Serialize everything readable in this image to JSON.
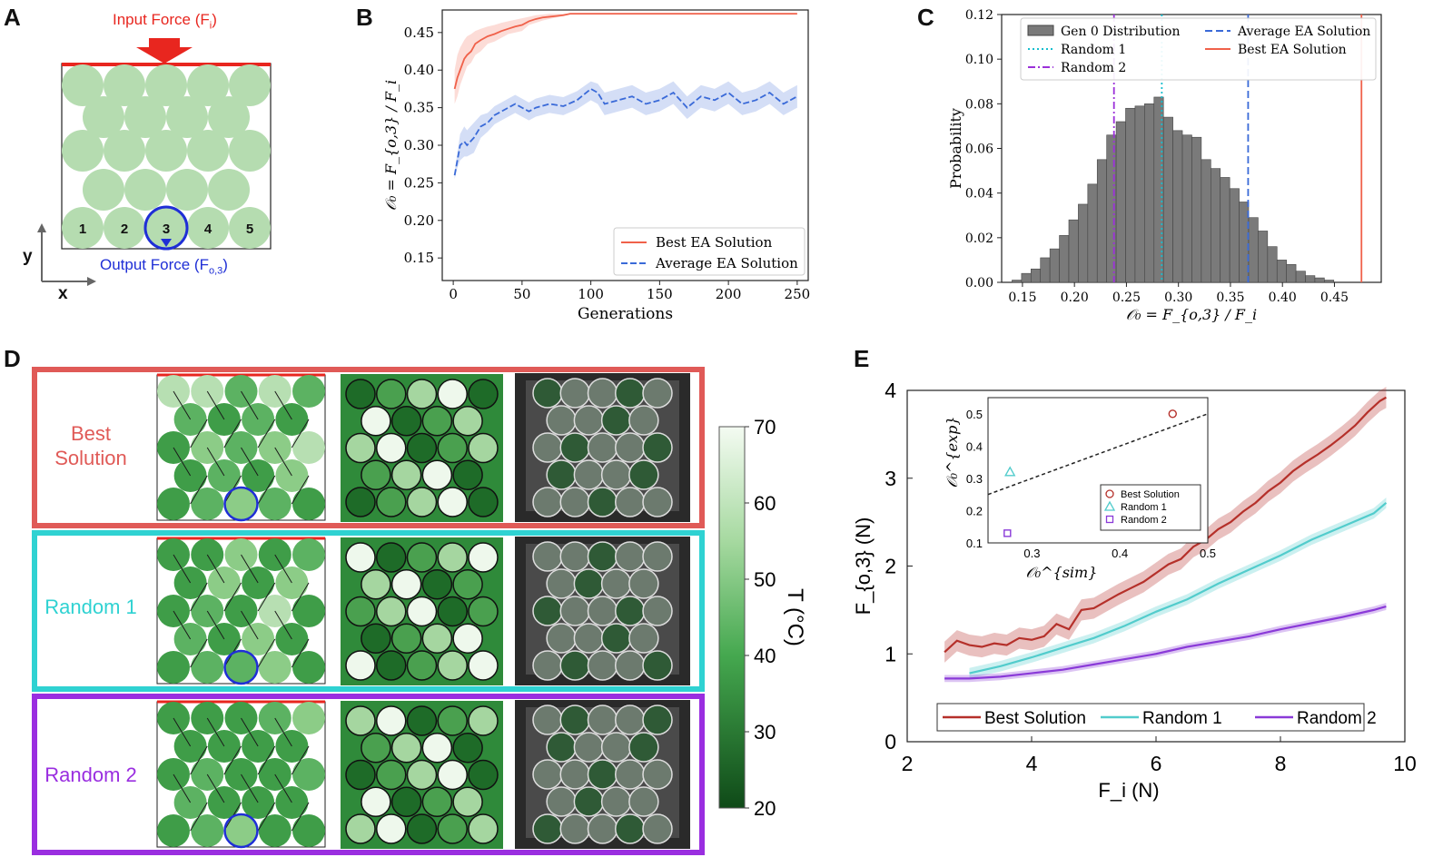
{
  "panels": {
    "a": {
      "letter": "A",
      "input_label_pre": "Input Force (F",
      "input_label_sub": "i",
      "input_label_post": ")",
      "output_label_pre": "Output Force (F",
      "output_label_sub": "o,3",
      "output_label_post": ")",
      "bottom_numbers": [
        "1",
        "2",
        "3",
        "4",
        "5"
      ],
      "axis_y": "y",
      "axis_x": "x",
      "colors": {
        "input": "#e8261f",
        "output": "#1f2fd6",
        "particle": "#b5dcb0"
      }
    },
    "b": {
      "letter": "B"
    },
    "c": {
      "letter": "C"
    },
    "d": {
      "letter": "D",
      "rows": [
        {
          "label": "Best\nSolution",
          "color": "#e05a57"
        },
        {
          "label": "Random 1",
          "color": "#2fd2d2"
        },
        {
          "label": "Random 2",
          "color": "#9a2ee0"
        }
      ],
      "colorbar": {
        "ticks": [
          "70",
          "60",
          "50",
          "40",
          "30",
          "20"
        ],
        "label": "T (°C)"
      }
    },
    "e": {
      "letter": "E"
    }
  },
  "chart_data": [
    {
      "id": "B",
      "type": "line",
      "xlabel": "Generations",
      "ylabel": "𝒪₀ = F_{o,3} / F_i",
      "xlim": [
        -8,
        258
      ],
      "ylim": [
        0.12,
        0.48
      ],
      "xticks": [
        "0",
        "50",
        "100",
        "150",
        "200",
        "250"
      ],
      "yticks": [
        "0.15",
        "0.20",
        "0.25",
        "0.30",
        "0.35",
        "0.40",
        "0.45"
      ],
      "legend": {
        "position": "bottom-right",
        "entries": [
          "Best EA Solution",
          "Average EA Solution"
        ]
      },
      "series": [
        {
          "name": "Best EA Solution",
          "color": "#f0614a",
          "style": "solid",
          "x": [
            1,
            3,
            5,
            8,
            10,
            13,
            16,
            20,
            25,
            30,
            35,
            40,
            45,
            50,
            55,
            60,
            65,
            70,
            75,
            80,
            85,
            100,
            150,
            200,
            250
          ],
          "y": [
            0.375,
            0.39,
            0.4,
            0.415,
            0.42,
            0.425,
            0.435,
            0.44,
            0.445,
            0.448,
            0.452,
            0.455,
            0.458,
            0.46,
            0.465,
            0.468,
            0.47,
            0.471,
            0.472,
            0.473,
            0.475,
            0.475,
            0.475,
            0.475,
            0.475
          ],
          "band_low": [
            0.355,
            0.365,
            0.38,
            0.395,
            0.405,
            0.41,
            0.42,
            0.425,
            0.435,
            0.438,
            0.443,
            0.448,
            0.45,
            0.452,
            0.46,
            0.463,
            0.466,
            0.468,
            0.47,
            0.472,
            0.475,
            0.475,
            0.475,
            0.475,
            0.475
          ],
          "band_high": [
            0.4,
            0.42,
            0.43,
            0.44,
            0.445,
            0.448,
            0.452,
            0.455,
            0.458,
            0.46,
            0.463,
            0.465,
            0.467,
            0.469,
            0.471,
            0.473,
            0.474,
            0.475,
            0.475,
            0.475,
            0.475,
            0.475,
            0.475,
            0.475,
            0.475
          ]
        },
        {
          "name": "Average EA Solution",
          "color": "#3a6ad8",
          "style": "dashed",
          "x": [
            1,
            3,
            5,
            8,
            10,
            15,
            20,
            25,
            30,
            35,
            40,
            45,
            50,
            55,
            60,
            70,
            80,
            90,
            100,
            105,
            110,
            120,
            130,
            140,
            150,
            160,
            170,
            180,
            190,
            200,
            210,
            220,
            230,
            240,
            250
          ],
          "y": [
            0.26,
            0.28,
            0.3,
            0.305,
            0.3,
            0.31,
            0.325,
            0.33,
            0.34,
            0.345,
            0.35,
            0.355,
            0.35,
            0.345,
            0.35,
            0.355,
            0.352,
            0.36,
            0.375,
            0.37,
            0.355,
            0.36,
            0.365,
            0.355,
            0.36,
            0.37,
            0.35,
            0.365,
            0.36,
            0.37,
            0.355,
            0.36,
            0.37,
            0.355,
            0.365
          ],
          "band_low": [
            0.255,
            0.27,
            0.28,
            0.285,
            0.285,
            0.29,
            0.31,
            0.318,
            0.328,
            0.333,
            0.338,
            0.343,
            0.338,
            0.333,
            0.338,
            0.343,
            0.34,
            0.348,
            0.36,
            0.355,
            0.34,
            0.345,
            0.35,
            0.34,
            0.345,
            0.355,
            0.335,
            0.35,
            0.345,
            0.355,
            0.34,
            0.345,
            0.355,
            0.34,
            0.35
          ],
          "band_high": [
            0.265,
            0.29,
            0.315,
            0.325,
            0.32,
            0.33,
            0.34,
            0.343,
            0.352,
            0.357,
            0.362,
            0.367,
            0.362,
            0.357,
            0.362,
            0.367,
            0.364,
            0.372,
            0.385,
            0.382,
            0.37,
            0.375,
            0.38,
            0.37,
            0.375,
            0.385,
            0.365,
            0.38,
            0.375,
            0.385,
            0.37,
            0.375,
            0.385,
            0.37,
            0.38
          ]
        }
      ]
    },
    {
      "id": "C",
      "type": "bar",
      "xlabel": "𝒪₀ = F_{o,3} / F_i",
      "ylabel": "Probability",
      "xlim": [
        0.13,
        0.495
      ],
      "ylim": [
        0,
        0.12
      ],
      "xticks": [
        "0.15",
        "0.20",
        "0.25",
        "0.30",
        "0.35",
        "0.40",
        "0.45"
      ],
      "yticks": [
        "0.00",
        "0.02",
        "0.04",
        "0.06",
        "0.08",
        "0.10",
        "0.12"
      ],
      "legend": {
        "position": "top",
        "entries": [
          "Gen 0 Distribution",
          "Random 1",
          "Random 2",
          "Average EA Solution",
          "Best EA Solution"
        ]
      },
      "bins_start": 0.14,
      "bin_width": 0.0091,
      "values": [
        0.001,
        0.004,
        0.006,
        0.011,
        0.015,
        0.021,
        0.028,
        0.035,
        0.044,
        0.055,
        0.066,
        0.072,
        0.078,
        0.079,
        0.08,
        0.083,
        0.074,
        0.068,
        0.066,
        0.065,
        0.055,
        0.051,
        0.047,
        0.042,
        0.036,
        0.029,
        0.023,
        0.016,
        0.01,
        0.008,
        0.005,
        0.003,
        0.002,
        0.001
      ],
      "vlines": [
        {
          "name": "Random 1",
          "x": 0.284,
          "color": "#17becf",
          "style": "dotted"
        },
        {
          "name": "Random 2",
          "x": 0.238,
          "color": "#9b30d9",
          "style": "dashdot"
        },
        {
          "name": "Average EA Solution",
          "x": 0.367,
          "color": "#3a6ad8",
          "style": "dashed"
        },
        {
          "name": "Best EA Solution",
          "x": 0.476,
          "color": "#f0614a",
          "style": "solid"
        }
      ],
      "bar_color": "#7a7a7a"
    },
    {
      "id": "E",
      "type": "line",
      "xlabel": "F_i (N)",
      "ylabel": "F_{o,3} (N)",
      "xlim": [
        2,
        10
      ],
      "ylim": [
        0,
        4
      ],
      "xticks": [
        "2",
        "4",
        "6",
        "8",
        "10"
      ],
      "yticks": [
        "0",
        "1",
        "2",
        "3",
        "4"
      ],
      "legend": {
        "position": "bottom",
        "entries": [
          "Best Solution",
          "Random 1",
          "Random 2"
        ]
      },
      "series": [
        {
          "name": "Best Solution",
          "color": "#b5302a",
          "x": [
            2.6,
            2.8,
            3.0,
            3.2,
            3.4,
            3.6,
            3.8,
            4.0,
            4.2,
            4.4,
            4.6,
            4.8,
            5.0,
            5.2,
            5.4,
            5.6,
            5.8,
            6.0,
            6.2,
            6.4,
            6.6,
            6.8,
            7.0,
            7.2,
            7.4,
            7.6,
            7.8,
            8.0,
            8.2,
            8.4,
            8.6,
            8.8,
            9.0,
            9.2,
            9.4,
            9.6,
            9.7
          ],
          "y": [
            1.02,
            1.15,
            1.1,
            1.08,
            1.12,
            1.1,
            1.18,
            1.16,
            1.2,
            1.34,
            1.28,
            1.5,
            1.52,
            1.6,
            1.68,
            1.75,
            1.82,
            1.92,
            2.02,
            2.08,
            2.22,
            2.3,
            2.42,
            2.5,
            2.62,
            2.72,
            2.85,
            2.95,
            3.08,
            3.18,
            3.27,
            3.37,
            3.48,
            3.6,
            3.75,
            3.88,
            3.92
          ],
          "band": 0.12
        },
        {
          "name": "Random 1",
          "color": "#52cccc",
          "x": [
            3.0,
            3.5,
            4.0,
            4.5,
            5.0,
            5.5,
            6.0,
            6.5,
            7.0,
            7.5,
            8.0,
            8.5,
            9.0,
            9.5,
            9.7
          ],
          "y": [
            0.78,
            0.86,
            0.96,
            1.07,
            1.18,
            1.32,
            1.48,
            1.62,
            1.8,
            1.96,
            2.12,
            2.3,
            2.45,
            2.6,
            2.72
          ],
          "band": 0.06
        },
        {
          "name": "Random 2",
          "color": "#8a3ad8",
          "x": [
            2.6,
            3.0,
            3.5,
            4.0,
            4.5,
            5.0,
            5.5,
            6.0,
            6.5,
            7.0,
            7.5,
            8.0,
            8.5,
            9.0,
            9.5,
            9.7
          ],
          "y": [
            0.72,
            0.72,
            0.74,
            0.78,
            0.82,
            0.88,
            0.94,
            1.0,
            1.08,
            1.14,
            1.2,
            1.28,
            1.35,
            1.42,
            1.5,
            1.54
          ],
          "band": 0.04
        }
      ],
      "inset": {
        "xlabel": "𝒪₀^{sim}",
        "ylabel": "𝒪₀^{exp}",
        "xlim": [
          0.25,
          0.5
        ],
        "ylim": [
          0.1,
          0.55
        ],
        "xticks": [
          "0.3",
          "0.4",
          "0.5"
        ],
        "yticks": [
          "0.1",
          "0.2",
          "0.3",
          "0.4",
          "0.5"
        ],
        "diagonal": true,
        "points": [
          {
            "name": "Best Solution",
            "x": 0.46,
            "y": 0.5,
            "marker": "circle",
            "color": "#b5302a"
          },
          {
            "name": "Random 1",
            "x": 0.275,
            "y": 0.32,
            "marker": "triangle",
            "color": "#52cccc"
          },
          {
            "name": "Random 2",
            "x": 0.272,
            "y": 0.13,
            "marker": "square",
            "color": "#8a3ad8"
          }
        ]
      }
    }
  ]
}
